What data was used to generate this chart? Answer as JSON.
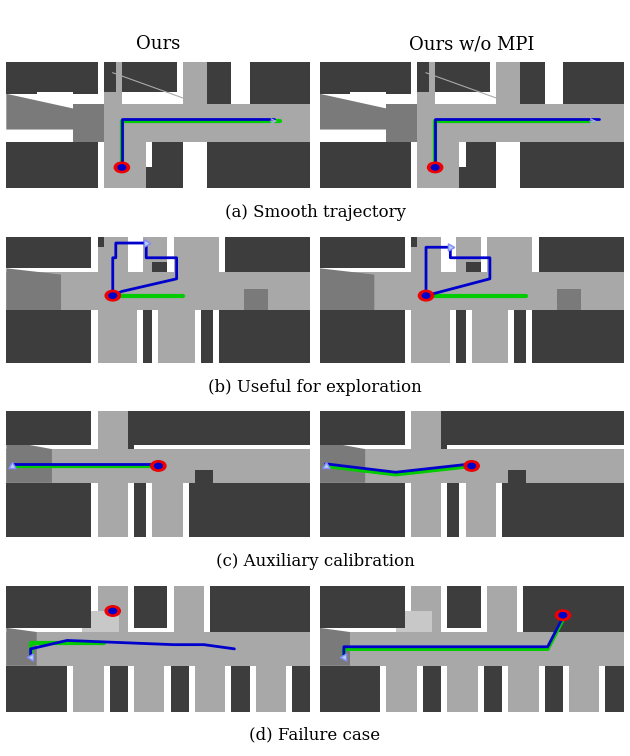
{
  "col_labels": [
    "Ours",
    "Ours w/o MPI"
  ],
  "row_labels": [
    "(a) Smooth trajectory",
    "(b) Useful for exploration",
    "(c) Auxiliary calibration",
    "(d) Failure case"
  ],
  "label_fontsize": 12,
  "col_label_fontsize": 13,
  "bg": "#ffffff",
  "DG": "#3d3d3d",
  "MG": "#7a7a7a",
  "LG": "#a8a8a8",
  "VLG": "#c8c8c8",
  "TB": "#0000cc",
  "TG": "#00cc00",
  "RD": "#ee0000",
  "fig_width": 6.3,
  "fig_height": 7.56
}
